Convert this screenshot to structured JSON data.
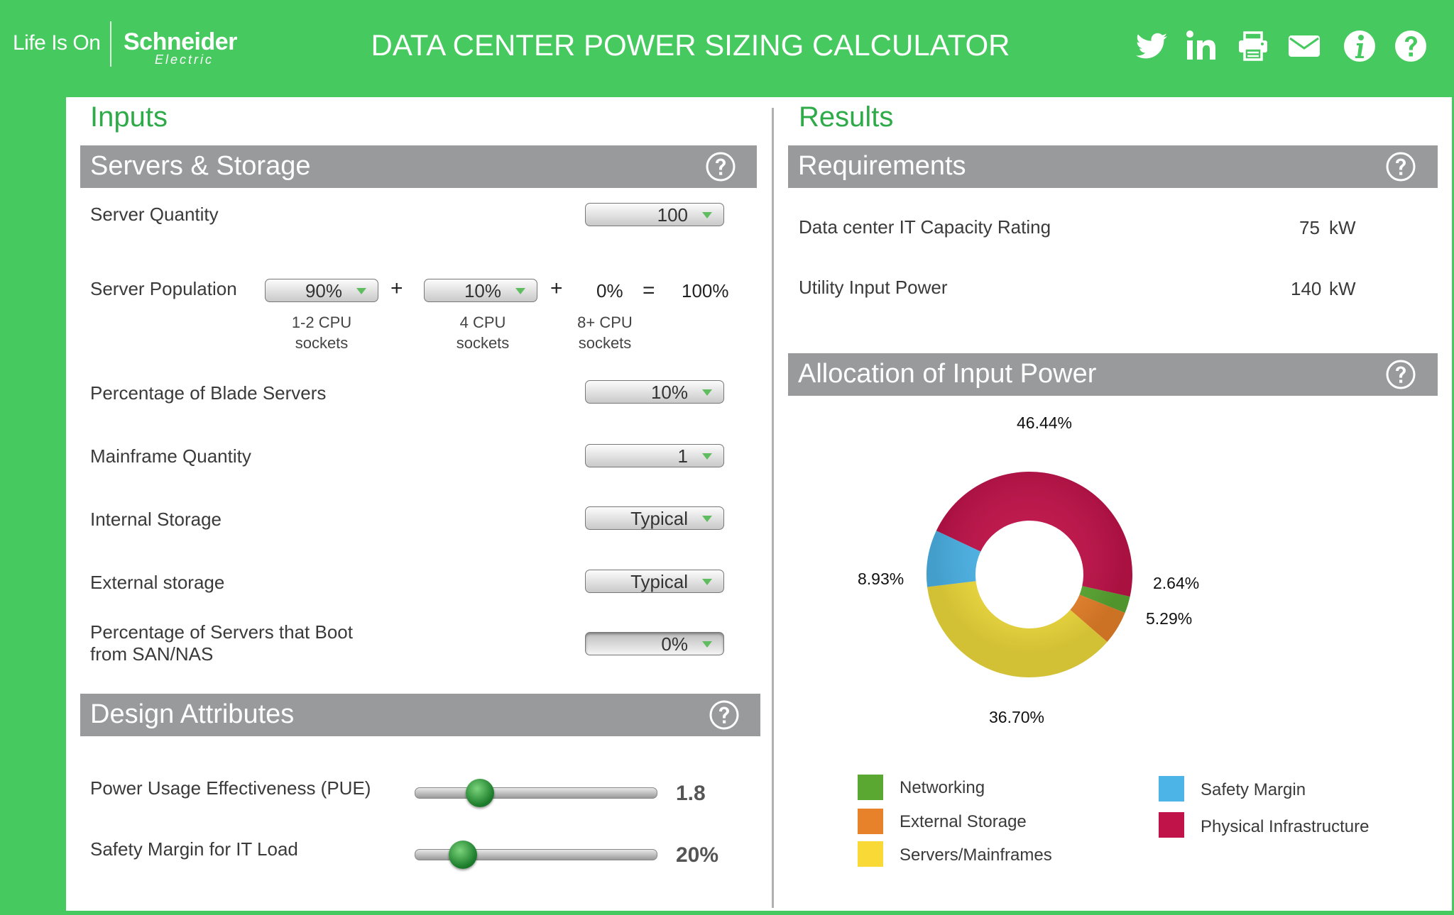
{
  "header": {
    "logo_tagline": "Life Is On",
    "logo_brand": "Schneider",
    "logo_brand_sub": "Electric",
    "title": "DATA CENTER POWER SIZING CALCULATOR",
    "icons": [
      "twitter-icon",
      "linkedin-icon",
      "print-icon",
      "email-icon",
      "info-icon",
      "help-icon"
    ]
  },
  "inputs": {
    "title": "Inputs",
    "servers_storage": {
      "section_title": "Servers & Storage",
      "server_quantity": {
        "label": "Server Quantity",
        "value": "100"
      },
      "server_population": {
        "label": "Server Population",
        "low": {
          "value": "90%",
          "caption1": "1-2 CPU",
          "caption2": "sockets"
        },
        "mid": {
          "value": "10%",
          "caption1": "4 CPU",
          "caption2": "sockets"
        },
        "high": {
          "value": "0%",
          "caption1": "8+ CPU",
          "caption2": "sockets"
        },
        "plus": "+",
        "equals": "=",
        "total": "100%"
      },
      "blade_servers": {
        "label": "Percentage of Blade Servers",
        "value": "10%"
      },
      "mainframe_quantity": {
        "label": "Mainframe Quantity",
        "value": "1"
      },
      "internal_storage": {
        "label": "Internal Storage",
        "value": "Typical"
      },
      "external_storage": {
        "label": "External storage",
        "value": "Typical"
      },
      "san_boot": {
        "label_line1": "Percentage of Servers that Boot",
        "label_line2": "from SAN/NAS",
        "value": "0%"
      }
    },
    "design_attributes": {
      "section_title": "Design Attributes",
      "pue": {
        "label": "Power Usage Effectiveness (PUE)",
        "value": "1.8",
        "fraction": 0.27
      },
      "safety_margin": {
        "label": "Safety Margin for IT Load",
        "value": "20%",
        "fraction": 0.2
      }
    }
  },
  "results": {
    "title": "Results",
    "requirements": {
      "section_title": "Requirements",
      "it_capacity": {
        "label": "Data center IT Capacity Rating",
        "value": "75",
        "unit": "kW"
      },
      "utility_input": {
        "label": "Utility Input Power",
        "value": "140",
        "unit": "kW"
      }
    },
    "allocation": {
      "section_title": "Allocation of Input Power",
      "legend": {
        "networking": "Networking",
        "external_storage": "External Storage",
        "servers": "Servers/Mainframes",
        "safety_margin": "Safety Margin",
        "physical_infrastructure": "Physical Infrastructure"
      }
    }
  },
  "colors": {
    "header_green": "#46c95f",
    "title_green": "#2eab48",
    "section_gray": "#999a9c",
    "networking": "#5aa832",
    "external_storage": "#e8822a",
    "servers": "#f0db3c",
    "safety_margin": "#4db4e8",
    "physical_infrastructure": "#c0134a"
  },
  "chart_data": {
    "type": "pie",
    "variant": "donut",
    "title": "Allocation of Input Power",
    "series": [
      {
        "name": "Physical Infrastructure",
        "value": 46.44,
        "label": "46.44%",
        "color": "#c0134a"
      },
      {
        "name": "Networking",
        "value": 2.64,
        "label": "2.64%",
        "color": "#5aa832"
      },
      {
        "name": "External Storage",
        "value": 5.29,
        "label": "5.29%",
        "color": "#e8822a"
      },
      {
        "name": "Servers/Mainframes",
        "value": 36.7,
        "label": "36.70%",
        "color": "#f0db3c"
      },
      {
        "name": "Safety Margin",
        "value": 8.93,
        "label": "8.93%",
        "color": "#4db4e8"
      }
    ]
  }
}
